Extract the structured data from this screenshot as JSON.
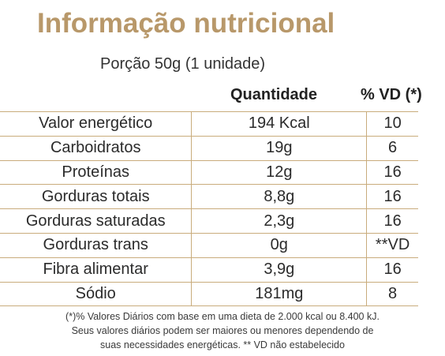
{
  "title": "Informação nutricional",
  "portion": "Porção 50g (1 unidade)",
  "headers": {
    "quantity": "Quantidade",
    "vd": "% VD (*)"
  },
  "rows": [
    {
      "name": "Valor energético",
      "quantity": "194 Kcal",
      "vd": "10"
    },
    {
      "name": "Carboidratos",
      "quantity": "19g",
      "vd": "6"
    },
    {
      "name": "Proteínas",
      "quantity": "12g",
      "vd": "16"
    },
    {
      "name": "Gorduras totais",
      "quantity": "8,8g",
      "vd": "16"
    },
    {
      "name": "Gorduras saturadas",
      "quantity": "2,3g",
      "vd": "16"
    },
    {
      "name": "Gorduras trans",
      "quantity": "0g",
      "vd": "**VD"
    },
    {
      "name": "Fibra alimentar",
      "quantity": "3,9g",
      "vd": "16"
    },
    {
      "name": "Sódio",
      "quantity": "181mg",
      "vd": "8"
    }
  ],
  "footnote": [
    "(*)% Valores Diários com base em uma dieta de 2.000 kcal ou 8.400 kJ.",
    "Seus valores diários podem ser maiores ou menores dependendo de",
    "suas necessidades energéticas. ** VD não estabelecido"
  ],
  "colors": {
    "title": "#b8986a",
    "rule": "#c9ac7c",
    "text": "#2b2b2b"
  }
}
